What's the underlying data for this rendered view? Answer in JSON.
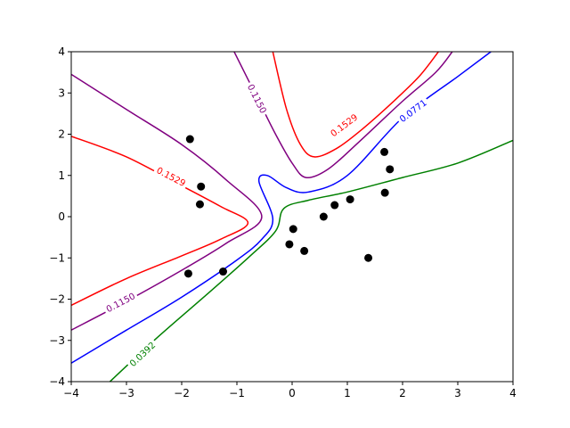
{
  "chart_data": {
    "type": "scatter",
    "title": "",
    "xlabel": "",
    "ylabel": "",
    "xlim": [
      -4,
      4
    ],
    "ylim": [
      -4,
      4
    ],
    "xticks": [
      -4,
      -3,
      -2,
      -1,
      0,
      1,
      2,
      3,
      4
    ],
    "yticks": [
      -4,
      -3,
      -2,
      -1,
      0,
      1,
      2,
      3,
      4
    ],
    "xtick_labels": [
      "−4",
      "−3",
      "−2",
      "−1",
      "0",
      "1",
      "2",
      "3",
      "4"
    ],
    "ytick_labels": [
      "−4",
      "−3",
      "−2",
      "−1",
      "0",
      "1",
      "2",
      "3",
      "4"
    ],
    "grid": false,
    "points": {
      "color": "#000000",
      "x": [
        -1.85,
        -1.65,
        -1.67,
        -1.88,
        -1.25,
        0.02,
        -0.05,
        0.22,
        0.57,
        0.77,
        1.05,
        1.38,
        1.68,
        1.77,
        1.67
      ],
      "y": [
        1.88,
        0.73,
        0.3,
        -1.38,
        -1.33,
        -0.3,
        -0.67,
        -0.83,
        0.0,
        0.28,
        0.42,
        -1.0,
        0.58,
        1.15,
        1.57
      ]
    },
    "contours": [
      {
        "level": "0.0392",
        "color": "#008000",
        "paths": [
          [
            [
              -3.3,
              -4.0
            ],
            [
              -2.5,
              -3.0
            ],
            [
              -1.6,
              -1.95
            ],
            [
              -0.8,
              -1.0
            ],
            [
              -0.3,
              -0.35
            ],
            [
              -0.15,
              0.2
            ],
            [
              0.3,
              0.4
            ],
            [
              1.0,
              0.6
            ],
            [
              2.0,
              0.95
            ],
            [
              3.0,
              1.3
            ],
            [
              4.0,
              1.85
            ]
          ]
        ],
        "label_at": [
          -2.7,
          -3.35
        ]
      },
      {
        "level": "0.0771",
        "color": "#0000ff",
        "paths": [
          [
            [
              -4.0,
              -3.55
            ],
            [
              -3.0,
              -2.75
            ],
            [
              -2.0,
              -1.95
            ],
            [
              -1.0,
              -1.05
            ],
            [
              -0.55,
              -0.55
            ],
            [
              -0.35,
              -0.05
            ],
            [
              -0.6,
              0.85
            ],
            [
              -0.45,
              1.0
            ],
            [
              -0.1,
              0.7
            ],
            [
              0.3,
              0.6
            ],
            [
              1.0,
              1.0
            ],
            [
              2.0,
              2.4
            ],
            [
              3.0,
              3.4
            ],
            [
              3.6,
              4.0
            ]
          ]
        ],
        "label_at": [
          2.2,
          2.55
        ]
      },
      {
        "level": "0.1150",
        "color": "#800080",
        "paths": [
          [
            [
              -4.0,
              3.45
            ],
            [
              -3.0,
              2.6
            ],
            [
              -2.0,
              1.75
            ],
            [
              -1.2,
              0.9
            ],
            [
              -0.55,
              0.0
            ],
            [
              -1.2,
              -0.65
            ],
            [
              -2.0,
              -1.3
            ],
            [
              -3.0,
              -2.05
            ],
            [
              -4.0,
              -2.75
            ]
          ],
          [
            [
              -1.05,
              4.0
            ],
            [
              -0.6,
              2.8
            ],
            [
              -0.3,
              2.0
            ],
            [
              0.0,
              1.3
            ],
            [
              0.25,
              0.95
            ],
            [
              0.65,
              1.15
            ],
            [
              1.2,
              1.8
            ],
            [
              2.0,
              2.8
            ],
            [
              2.6,
              3.5
            ],
            [
              2.9,
              4.0
            ]
          ]
        ],
        "label_at_list": [
          [
            -3.1,
            -2.1
          ],
          [
            -0.65,
            2.85
          ]
        ]
      },
      {
        "level": "0.1529",
        "color": "#ff0000",
        "paths": [
          [
            [
              -4.0,
              1.95
            ],
            [
              -3.0,
              1.45
            ],
            [
              -2.0,
              0.75
            ],
            [
              -1.3,
              0.25
            ],
            [
              -0.8,
              -0.15
            ],
            [
              -1.3,
              -0.55
            ],
            [
              -2.0,
              -0.95
            ],
            [
              -3.0,
              -1.5
            ],
            [
              -4.0,
              -2.15
            ]
          ],
          [
            [
              -0.35,
              4.0
            ],
            [
              -0.1,
              2.6
            ],
            [
              0.15,
              1.75
            ],
            [
              0.4,
              1.45
            ],
            [
              0.8,
              1.65
            ],
            [
              1.25,
              2.1
            ],
            [
              1.8,
              2.75
            ],
            [
              2.3,
              3.4
            ],
            [
              2.65,
              4.0
            ]
          ]
        ],
        "label_at_list": [
          [
            -2.2,
            0.95
          ],
          [
            0.95,
            2.2
          ]
        ]
      }
    ]
  }
}
